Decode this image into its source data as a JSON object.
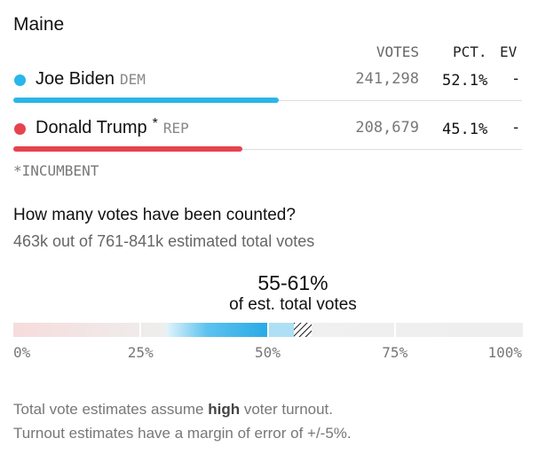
{
  "header": {
    "title": "Maine",
    "votes_label": "VOTES",
    "pct_label": "PCT.",
    "ev_label": "EV"
  },
  "candidates": [
    {
      "name": "Joe Biden",
      "party": "DEM",
      "votes": "241,298",
      "pct": "52.1%",
      "ev": "-",
      "color": "#29b6e8"
    },
    {
      "name": "Donald Trump",
      "marker": "*",
      "party": "REP",
      "votes": "208,679",
      "pct": "45.1%",
      "ev": "-",
      "color": "#e5444f"
    }
  ],
  "incumbent_note": "*INCUMBENT",
  "counted": {
    "question": "How many votes have been counted?",
    "summary": "463k out of 761-841k estimated total votes",
    "range": "55-61%",
    "range_caption": "of est. total votes",
    "ticks": [
      "0%",
      "25%",
      "50%",
      "75%",
      "100%"
    ]
  },
  "footer": {
    "line1_before": "Total vote estimates assume ",
    "line1_bold": "high",
    "line1_after": " voter turnout.",
    "line2": "Turnout estimates have a margin of error of +/-5%."
  }
}
